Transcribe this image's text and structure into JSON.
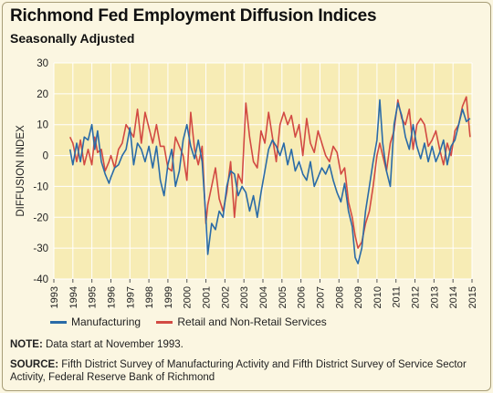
{
  "title": "Richmond Fed Employment Diffusion Indices",
  "subtitle": "Seasonally Adjusted",
  "note_label": "NOTE:",
  "note_text": "Data start at November 1993.",
  "source_label": "SOURCE:",
  "source_text": "Fifth District Survey of Manufacturing Activity and Fifth District Survey of Service Sector Activity, Federal Reserve Bank of Richmond",
  "colors": {
    "background": "#fbf6e1",
    "plot_bg": "#f7ecb5",
    "manufacturing": "#2a6ba7",
    "services": "#d24a43"
  },
  "chart_data": {
    "type": "line",
    "ylabel": "DIFFUSION INDEX",
    "xlabel": "",
    "ylim": [
      -40,
      30
    ],
    "yticks": [
      -40,
      -30,
      -20,
      -10,
      0,
      10,
      20,
      30
    ],
    "xlim": [
      1993,
      2015
    ],
    "xticks": [
      "1993",
      "1994",
      "1995",
      "1996",
      "1997",
      "1998",
      "1999",
      "2000",
      "2001",
      "2002",
      "2003",
      "2004",
      "2005",
      "2006",
      "2007",
      "2008",
      "2009",
      "2010",
      "2011",
      "2012",
      "2013",
      "2014",
      "2015"
    ],
    "grid": true,
    "legend_position": "bottom",
    "series": [
      {
        "name": "Manufacturing",
        "color": "#2a6ba7",
        "points": [
          [
            1993.85,
            2
          ],
          [
            1994.0,
            -3
          ],
          [
            1994.2,
            4
          ],
          [
            1994.4,
            -2
          ],
          [
            1994.6,
            6
          ],
          [
            1994.8,
            5
          ],
          [
            1995.0,
            10
          ],
          [
            1995.15,
            2
          ],
          [
            1995.3,
            8
          ],
          [
            1995.5,
            -2
          ],
          [
            1995.7,
            -6
          ],
          [
            1995.9,
            -9
          ],
          [
            1996.0,
            -7
          ],
          [
            1996.2,
            -4
          ],
          [
            1996.4,
            -3
          ],
          [
            1996.6,
            0
          ],
          [
            1996.8,
            2
          ],
          [
            1997.0,
            9
          ],
          [
            1997.2,
            -3
          ],
          [
            1997.4,
            4
          ],
          [
            1997.6,
            2
          ],
          [
            1997.8,
            -2
          ],
          [
            1998.0,
            3
          ],
          [
            1998.2,
            -4
          ],
          [
            1998.4,
            3
          ],
          [
            1998.6,
            -8
          ],
          [
            1998.8,
            -13
          ],
          [
            1999.0,
            -3
          ],
          [
            1999.2,
            2
          ],
          [
            1999.4,
            -10
          ],
          [
            1999.6,
            -5
          ],
          [
            1999.8,
            5
          ],
          [
            2000.0,
            10
          ],
          [
            2000.2,
            3
          ],
          [
            2000.4,
            -1
          ],
          [
            2000.6,
            5
          ],
          [
            2000.8,
            -2
          ],
          [
            2001.0,
            -20
          ],
          [
            2001.1,
            -32
          ],
          [
            2001.3,
            -22
          ],
          [
            2001.5,
            -24
          ],
          [
            2001.7,
            -18
          ],
          [
            2001.9,
            -20
          ],
          [
            2002.1,
            -10
          ],
          [
            2002.3,
            -5
          ],
          [
            2002.5,
            -6
          ],
          [
            2002.7,
            -13
          ],
          [
            2002.9,
            -10
          ],
          [
            2003.1,
            -12
          ],
          [
            2003.3,
            -18
          ],
          [
            2003.5,
            -13
          ],
          [
            2003.7,
            -20
          ],
          [
            2003.9,
            -12
          ],
          [
            2004.1,
            -5
          ],
          [
            2004.3,
            2
          ],
          [
            2004.5,
            5
          ],
          [
            2004.7,
            3
          ],
          [
            2004.9,
            0
          ],
          [
            2005.1,
            4
          ],
          [
            2005.3,
            -3
          ],
          [
            2005.5,
            2
          ],
          [
            2005.7,
            -5
          ],
          [
            2005.9,
            -2
          ],
          [
            2006.1,
            -6
          ],
          [
            2006.3,
            -8
          ],
          [
            2006.5,
            -2
          ],
          [
            2006.7,
            -10
          ],
          [
            2006.9,
            -7
          ],
          [
            2007.1,
            -4
          ],
          [
            2007.3,
            -6
          ],
          [
            2007.5,
            -3
          ],
          [
            2007.7,
            -8
          ],
          [
            2007.9,
            -12
          ],
          [
            2008.1,
            -15
          ],
          [
            2008.3,
            -9
          ],
          [
            2008.5,
            -18
          ],
          [
            2008.7,
            -23
          ],
          [
            2008.85,
            -33
          ],
          [
            2009.0,
            -35
          ],
          [
            2009.2,
            -30
          ],
          [
            2009.4,
            -18
          ],
          [
            2009.6,
            -10
          ],
          [
            2009.8,
            -2
          ],
          [
            2010.0,
            5
          ],
          [
            2010.15,
            18
          ],
          [
            2010.3,
            4
          ],
          [
            2010.5,
            -5
          ],
          [
            2010.7,
            -10
          ],
          [
            2010.9,
            10
          ],
          [
            2011.1,
            17
          ],
          [
            2011.3,
            13
          ],
          [
            2011.5,
            6
          ],
          [
            2011.7,
            2
          ],
          [
            2011.9,
            10
          ],
          [
            2012.1,
            3
          ],
          [
            2012.3,
            -1
          ],
          [
            2012.5,
            4
          ],
          [
            2012.7,
            -2
          ],
          [
            2012.9,
            3
          ],
          [
            2013.1,
            -2
          ],
          [
            2013.3,
            1
          ],
          [
            2013.5,
            5
          ],
          [
            2013.7,
            -3
          ],
          [
            2013.9,
            3
          ],
          [
            2014.1,
            5
          ],
          [
            2014.3,
            10
          ],
          [
            2014.5,
            15
          ],
          [
            2014.7,
            11
          ],
          [
            2014.9,
            12
          ]
        ]
      },
      {
        "name": "Retail and Non-Retail Services",
        "color": "#d24a43",
        "points": [
          [
            1993.85,
            6
          ],
          [
            1994.0,
            4
          ],
          [
            1994.2,
            -2
          ],
          [
            1994.4,
            5
          ],
          [
            1994.6,
            -3
          ],
          [
            1994.8,
            2
          ],
          [
            1995.0,
            -3
          ],
          [
            1995.15,
            6
          ],
          [
            1995.3,
            1
          ],
          [
            1995.5,
            2
          ],
          [
            1995.7,
            -5
          ],
          [
            1995.9,
            -2
          ],
          [
            1996.0,
            0
          ],
          [
            1996.2,
            -4
          ],
          [
            1996.4,
            2
          ],
          [
            1996.6,
            4
          ],
          [
            1996.8,
            10
          ],
          [
            1997.0,
            8
          ],
          [
            1997.2,
            6
          ],
          [
            1997.4,
            15
          ],
          [
            1997.6,
            4
          ],
          [
            1997.8,
            14
          ],
          [
            1998.0,
            9
          ],
          [
            1998.2,
            4
          ],
          [
            1998.4,
            10
          ],
          [
            1998.6,
            3
          ],
          [
            1998.8,
            3
          ],
          [
            1999.0,
            -4
          ],
          [
            1999.2,
            -5
          ],
          [
            1999.4,
            6
          ],
          [
            1999.6,
            3
          ],
          [
            1999.8,
            0
          ],
          [
            2000.0,
            -8
          ],
          [
            2000.2,
            14
          ],
          [
            2000.4,
            2
          ],
          [
            2000.6,
            -3
          ],
          [
            2000.8,
            3
          ],
          [
            2001.0,
            -22
          ],
          [
            2001.1,
            -16
          ],
          [
            2001.3,
            -10
          ],
          [
            2001.5,
            -4
          ],
          [
            2001.7,
            -14
          ],
          [
            2001.9,
            -18
          ],
          [
            2002.1,
            -12
          ],
          [
            2002.3,
            -2
          ],
          [
            2002.5,
            -20
          ],
          [
            2002.7,
            -6
          ],
          [
            2002.9,
            -9
          ],
          [
            2003.1,
            17
          ],
          [
            2003.3,
            6
          ],
          [
            2003.5,
            -2
          ],
          [
            2003.7,
            -4
          ],
          [
            2003.9,
            8
          ],
          [
            2004.1,
            4
          ],
          [
            2004.3,
            14
          ],
          [
            2004.5,
            6
          ],
          [
            2004.7,
            -2
          ],
          [
            2004.9,
            10
          ],
          [
            2005.1,
            14
          ],
          [
            2005.3,
            10
          ],
          [
            2005.5,
            13
          ],
          [
            2005.7,
            6
          ],
          [
            2005.9,
            10
          ],
          [
            2006.1,
            0
          ],
          [
            2006.3,
            12
          ],
          [
            2006.5,
            4
          ],
          [
            2006.7,
            1
          ],
          [
            2006.9,
            8
          ],
          [
            2007.1,
            4
          ],
          [
            2007.3,
            0
          ],
          [
            2007.5,
            -2
          ],
          [
            2007.7,
            3
          ],
          [
            2007.9,
            1
          ],
          [
            2008.1,
            -6
          ],
          [
            2008.3,
            -4
          ],
          [
            2008.5,
            -15
          ],
          [
            2008.7,
            -20
          ],
          [
            2008.85,
            -26
          ],
          [
            2009.0,
            -30
          ],
          [
            2009.2,
            -28
          ],
          [
            2009.4,
            -22
          ],
          [
            2009.6,
            -18
          ],
          [
            2009.8,
            -10
          ],
          [
            2010.0,
            0
          ],
          [
            2010.15,
            4
          ],
          [
            2010.3,
            0
          ],
          [
            2010.5,
            -5
          ],
          [
            2010.7,
            4
          ],
          [
            2010.9,
            8
          ],
          [
            2011.1,
            18
          ],
          [
            2011.3,
            12
          ],
          [
            2011.5,
            10
          ],
          [
            2011.7,
            15
          ],
          [
            2011.9,
            2
          ],
          [
            2012.1,
            10
          ],
          [
            2012.3,
            12
          ],
          [
            2012.5,
            10
          ],
          [
            2012.7,
            3
          ],
          [
            2012.9,
            5
          ],
          [
            2013.1,
            8
          ],
          [
            2013.3,
            2
          ],
          [
            2013.5,
            -3
          ],
          [
            2013.7,
            4
          ],
          [
            2013.9,
            0
          ],
          [
            2014.1,
            8
          ],
          [
            2014.3,
            10
          ],
          [
            2014.5,
            16
          ],
          [
            2014.7,
            19
          ],
          [
            2014.9,
            6
          ]
        ]
      }
    ]
  }
}
